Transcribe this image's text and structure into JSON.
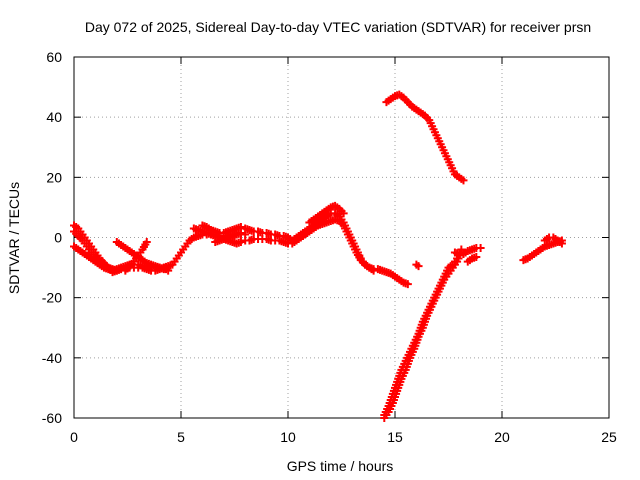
{
  "chart_data": {
    "type": "scatter",
    "title": "Day 072 of 2025, Sidereal Day-to-day VTEC variation (SDTVAR) for receiver prsn",
    "xlabel": "GPS time / hours",
    "ylabel": "SDTVAR / TECUs",
    "xlim": [
      0,
      25
    ],
    "ylim": [
      -60,
      60
    ],
    "xticks": [
      0,
      5,
      10,
      15,
      20,
      25
    ],
    "yticks": [
      -60,
      -40,
      -20,
      0,
      20,
      40,
      60
    ],
    "grid": true,
    "marker": "plus",
    "color": "#ff0000",
    "series": [
      {
        "x": [
          0.0,
          0.2,
          0.4,
          0.6,
          0.8,
          1.0,
          1.2,
          1.4,
          1.6,
          1.8,
          2.0,
          2.2,
          2.4,
          2.6,
          2.8,
          3.0,
          3.2,
          3.4,
          3.6,
          3.8,
          4.0,
          4.2,
          4.4,
          4.6,
          4.8,
          5.0,
          5.2,
          5.4,
          5.6,
          5.8,
          6.0,
          6.2,
          6.4,
          6.6,
          6.8,
          7.0,
          7.2,
          7.4,
          7.6,
          7.8,
          8.0
        ],
        "y": [
          -3,
          -4,
          -5,
          -6,
          -7,
          -8,
          -9,
          -10,
          -10.5,
          -11,
          -10.5,
          -10,
          -9.5,
          -9,
          -9,
          -9,
          -9.5,
          -9.5,
          -10,
          -10,
          -10,
          -10,
          -9.5,
          -9,
          -7,
          -5,
          -3,
          -1,
          0,
          0.5,
          1,
          1,
          1,
          1,
          0.5,
          0.5,
          0.5,
          1,
          1,
          1,
          1
        ]
      },
      {
        "x": [
          0.0,
          0.2,
          0.4,
          0.6,
          0.8,
          1.0,
          1.2,
          1.4,
          1.6,
          1.8,
          2.0,
          2.2,
          2.4,
          2.6,
          2.8,
          3.0,
          3.2,
          3.4,
          3.6,
          3.8,
          4.0,
          4.2,
          4.4
        ],
        "y": [
          4,
          3,
          1,
          -1,
          -3,
          -5,
          -7,
          -8.5,
          -10,
          -11.5,
          -11,
          -10.5,
          -10.5,
          -10,
          -10,
          -10,
          -10,
          -10.5,
          -11,
          -11,
          -10.5,
          -10,
          -11
        ]
      },
      {
        "x": [
          0.0,
          0.2,
          0.4,
          0.6,
          0.8,
          1.0,
          1.2,
          1.4,
          1.6,
          1.8,
          2.0
        ],
        "y": [
          2,
          0.5,
          -1,
          -3,
          -5,
          -6.5,
          -8,
          -9,
          -10,
          -10.5,
          -11
        ]
      },
      {
        "x": [
          2.0,
          2.2,
          2.4,
          2.6,
          2.8,
          3.0,
          3.2,
          3.4,
          3.6,
          3.8,
          4.0,
          4.2
        ],
        "y": [
          -1.5,
          -2.5,
          -3.5,
          -4.5,
          -5.5,
          -6.5,
          -7.5,
          -8.5,
          -9,
          -9.5,
          -10,
          -10.5
        ]
      },
      {
        "x": [
          2.4,
          2.6,
          2.8,
          3.0,
          3.2,
          3.4
        ],
        "y": [
          -11,
          -9.5,
          -8,
          -6,
          -4,
          -1.5
        ]
      },
      {
        "x": [
          5.6,
          5.8,
          6.0,
          6.2,
          6.4,
          6.6,
          6.8,
          7.0,
          7.2,
          7.4,
          7.6,
          7.8
        ],
        "y": [
          3,
          2.5,
          2,
          1.5,
          1,
          0.5,
          0,
          -0.5,
          -1,
          -1.5,
          -2,
          -1.5
        ]
      },
      {
        "x": [
          6.6,
          6.8,
          7.0,
          7.2,
          7.4,
          7.6,
          7.8
        ],
        "y": [
          -1.5,
          -1,
          -0.5,
          0,
          0.5,
          1,
          1.5
        ]
      },
      {
        "x": [
          6.0,
          6.2,
          6.4,
          6.6,
          6.8,
          7.0,
          7.2,
          7.4,
          7.6,
          7.8
        ],
        "y": [
          4,
          3.5,
          2.5,
          2,
          1.5,
          1.5,
          2,
          2.5,
          3,
          3.5
        ]
      },
      {
        "x": [
          8.0,
          8.2,
          8.4,
          8.6,
          8.8,
          9.0,
          9.2,
          9.4,
          9.6,
          9.8,
          10.0,
          10.2,
          10.4,
          10.6,
          10.8,
          11.0,
          11.2,
          11.4,
          11.6,
          11.8,
          12.0,
          12.2,
          12.4,
          12.6,
          12.8,
          13.0,
          13.2,
          13.4,
          13.6,
          13.8,
          14.0,
          14.2,
          14.4,
          14.6,
          14.8,
          15.0,
          15.2,
          15.4,
          15.6
        ],
        "y": [
          3,
          2.5,
          2,
          2,
          1.5,
          1.5,
          1,
          1,
          0.5,
          0.5,
          0,
          -1,
          0,
          1,
          2,
          3,
          4,
          5,
          6,
          7,
          8,
          8,
          7,
          5,
          2,
          -1,
          -4,
          -7,
          -9,
          -10,
          -10.5,
          -10.5,
          -11,
          -11.5,
          -12,
          -13,
          -14,
          -15,
          -15.5
        ]
      },
      {
        "x": [
          8.0,
          8.2,
          8.4,
          8.6,
          8.8,
          9.0,
          9.2,
          9.4,
          9.6,
          9.8,
          10.0,
          10.2,
          10.4,
          10.6,
          10.8,
          11.0,
          11.2,
          11.4,
          11.6,
          11.8,
          12.0,
          12.2,
          12.4,
          12.6,
          12.8,
          13.0,
          13.2,
          13.4,
          13.6,
          13.8,
          14.0
        ],
        "y": [
          -1,
          -1,
          -0.5,
          -0.5,
          -0.5,
          -0.5,
          -1,
          -1,
          -1,
          -1.5,
          -2,
          -2,
          -1,
          0,
          1,
          2,
          3,
          4,
          4.5,
          5,
          5.5,
          6,
          5.5,
          4,
          1,
          -2,
          -5,
          -7.5,
          -9,
          -10,
          -11
        ]
      },
      {
        "x": [
          11.0,
          11.2,
          11.4,
          11.6,
          11.8,
          12.0,
          12.2,
          12.4,
          12.6
        ],
        "y": [
          5,
          6,
          7,
          8,
          9,
          10,
          10.5,
          9.5,
          8
        ]
      },
      {
        "x": [
          16.0,
          16.1
        ],
        "y": [
          -9,
          -9.5
        ]
      },
      {
        "x": [
          14.6,
          14.8,
          15.0,
          15.2,
          15.4,
          15.6,
          15.8,
          16.0,
          16.2,
          16.4,
          16.6,
          16.8,
          17.0,
          17.2,
          17.4,
          17.6,
          17.8,
          18.0,
          18.2
        ],
        "y": [
          45,
          46,
          47,
          47.5,
          46.5,
          45,
          43.5,
          42.5,
          41.5,
          40.5,
          39,
          36,
          33,
          30,
          27,
          24,
          21,
          20,
          19
        ]
      },
      {
        "x": [
          14.5,
          14.7,
          14.9,
          15.1,
          15.3,
          15.5,
          15.7,
          15.9,
          16.1,
          16.3,
          16.5,
          16.7,
          16.9,
          17.1,
          17.3,
          17.5,
          17.7,
          17.9,
          18.1
        ],
        "y": [
          -59,
          -56,
          -52,
          -48,
          -44,
          -41,
          -38,
          -35,
          -32,
          -28,
          -25,
          -22,
          -19,
          -16,
          -13,
          -10,
          -9,
          -7,
          -4
        ]
      },
      {
        "x": [
          14.5,
          14.7,
          14.9,
          15.1,
          15.3,
          15.5,
          15.7,
          15.9,
          16.1,
          16.3,
          16.5,
          16.7,
          16.9,
          17.1,
          17.3,
          17.5,
          17.7,
          17.9,
          18.1
        ],
        "y": [
          -60,
          -58,
          -55,
          -51,
          -47,
          -44,
          -40,
          -37,
          -33,
          -30,
          -26,
          -23,
          -20,
          -17,
          -14,
          -12,
          -10,
          -8,
          -5
        ]
      },
      {
        "x": [
          17.8,
          18.0,
          18.2,
          18.4,
          18.6,
          18.8,
          19.0
        ],
        "y": [
          -5,
          -5.5,
          -5.5,
          -4.5,
          -4,
          -3.5,
          -3.5
        ]
      },
      {
        "x": [
          18.4,
          18.6,
          18.8
        ],
        "y": [
          -8,
          -7,
          -6.5
        ]
      },
      {
        "x": [
          21.0,
          21.2,
          21.4,
          21.6,
          21.8,
          22.0,
          22.2,
          22.4,
          22.6,
          22.8
        ],
        "y": [
          -7.5,
          -7,
          -6,
          -5,
          -4,
          -3,
          -2.5,
          -2,
          -1.5,
          -1
        ]
      },
      {
        "x": [
          22.0,
          22.2,
          22.4,
          22.6,
          22.8
        ],
        "y": [
          -1,
          0,
          0,
          -1,
          -2
        ]
      }
    ]
  }
}
